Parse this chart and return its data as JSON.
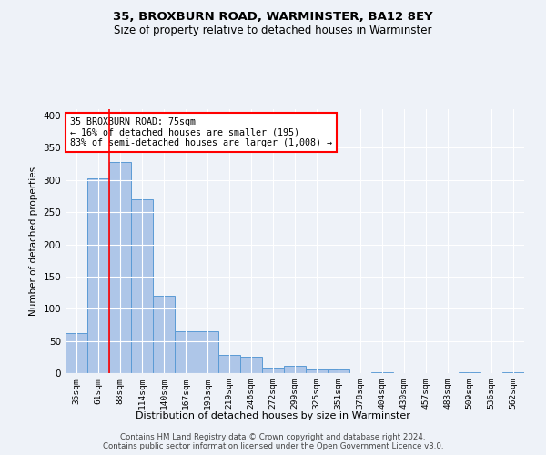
{
  "title1": "35, BROXBURN ROAD, WARMINSTER, BA12 8EY",
  "title2": "Size of property relative to detached houses in Warminster",
  "xlabel": "Distribution of detached houses by size in Warminster",
  "ylabel": "Number of detached properties",
  "categories": [
    "35sqm",
    "61sqm",
    "88sqm",
    "114sqm",
    "140sqm",
    "167sqm",
    "193sqm",
    "219sqm",
    "246sqm",
    "272sqm",
    "299sqm",
    "325sqm",
    "351sqm",
    "378sqm",
    "404sqm",
    "430sqm",
    "457sqm",
    "483sqm",
    "509sqm",
    "536sqm",
    "562sqm"
  ],
  "values": [
    62,
    303,
    328,
    270,
    120,
    65,
    65,
    28,
    25,
    9,
    12,
    5,
    5,
    0,
    1,
    0,
    0,
    0,
    1,
    0,
    1
  ],
  "bar_color": "#aec6e8",
  "bar_edge_color": "#5b9bd5",
  "vline_pos": 1.5,
  "vline_color": "red",
  "annotation_text": "35 BROXBURN ROAD: 75sqm\n← 16% of detached houses are smaller (195)\n83% of semi-detached houses are larger (1,008) →",
  "annotation_box_color": "white",
  "annotation_box_edge": "red",
  "ylim": [
    0,
    410
  ],
  "yticks": [
    0,
    50,
    100,
    150,
    200,
    250,
    300,
    350,
    400
  ],
  "footer1": "Contains HM Land Registry data © Crown copyright and database right 2024.",
  "footer2": "Contains public sector information licensed under the Open Government Licence v3.0.",
  "bg_color": "#eef2f8",
  "title1_fontsize": 9.5,
  "title2_fontsize": 8.5
}
